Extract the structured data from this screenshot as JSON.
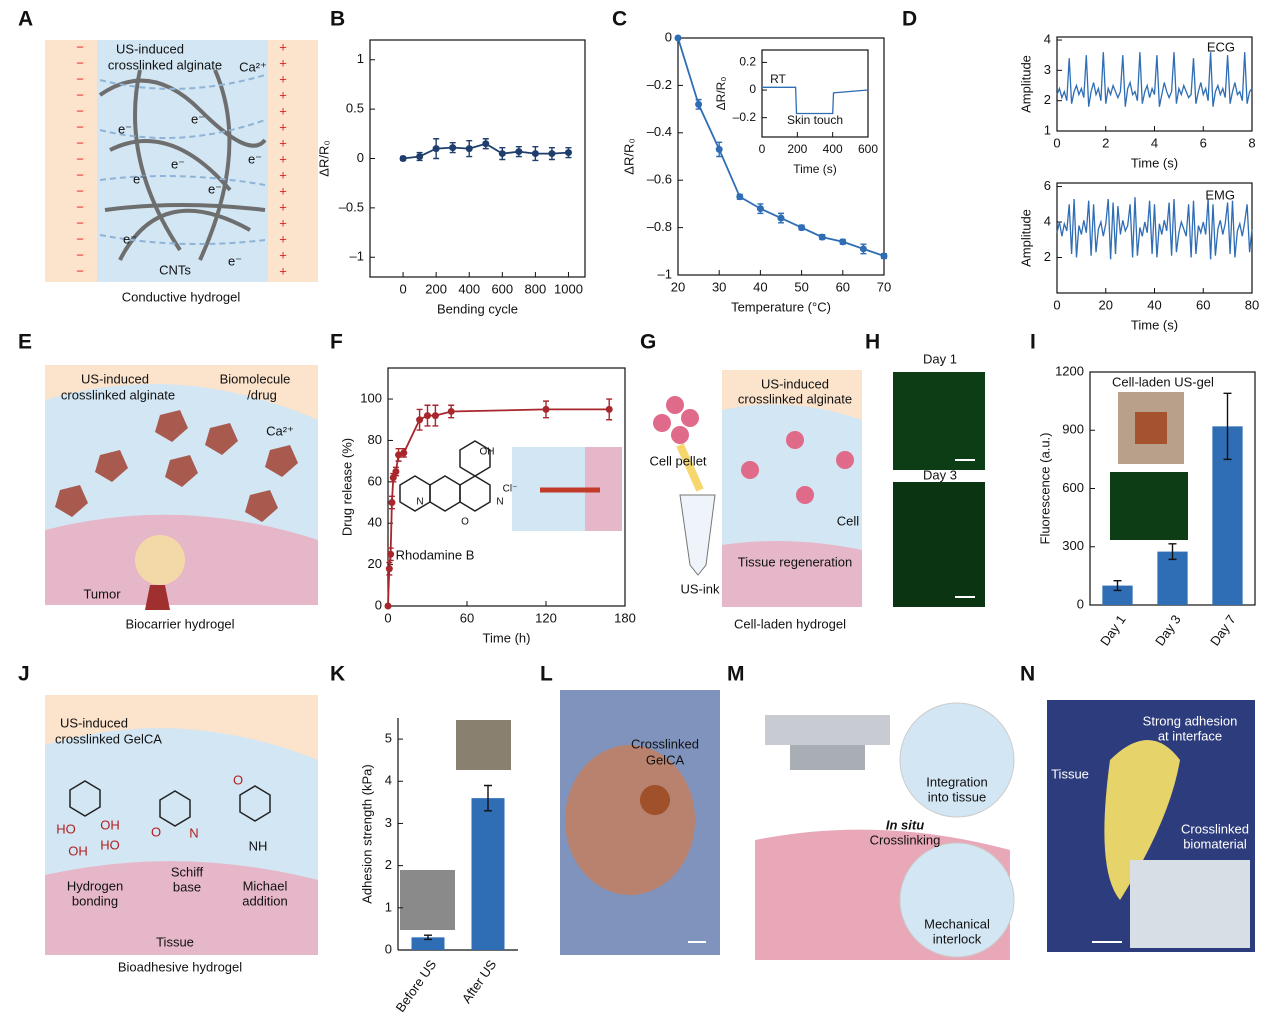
{
  "panel_letters": [
    "A",
    "B",
    "C",
    "D",
    "E",
    "F",
    "G",
    "H",
    "I",
    "J",
    "K",
    "L",
    "M",
    "N"
  ],
  "diagrams": {
    "A": [
      "US-induced",
      "crosslinked alginate",
      "Ca²⁺",
      "CNTs",
      "Conductive hydrogel",
      "e⁻",
      "−",
      "+"
    ],
    "E": [
      "US-induced",
      "crosslinked alginate",
      "Biomolecule",
      "/drug",
      "Ca²⁺",
      "Tumor",
      "Biocarrier hydrogel"
    ],
    "G": [
      "Cell pellet",
      "US-induced",
      "crosslinked alginate",
      "Cell",
      "Tissue regeneration",
      "US-ink",
      "Cell-laden hydrogel"
    ],
    "H": [
      "Day 1",
      "Day 3"
    ],
    "J": [
      "US-induced",
      "crosslinked GelCA",
      "HO",
      "OH",
      "OH",
      "HO",
      "O",
      "N",
      "O",
      "NH",
      "Hydrogen",
      "bonding",
      "Schiff",
      "base",
      "Michael",
      "addition",
      "Tissue",
      "Bioadhesive hydrogel"
    ],
    "L": [
      "Crosslinked",
      "GelCA"
    ],
    "M": [
      "Integration",
      "into tissue",
      "In situ",
      "Crosslinking",
      "Mechanical",
      "interlock"
    ],
    "N": [
      "Strong adhesion",
      "at interface",
      "Tissue",
      "Crosslinked",
      "biomaterial"
    ]
  },
  "chart_data": [
    {
      "type": "line",
      "markers": true,
      "frame": true,
      "color": "#1f3e6e",
      "x": [
        0,
        100,
        200,
        300,
        400,
        500,
        600,
        700,
        800,
        900,
        1000
      ],
      "values": [
        0,
        0.02,
        0.1,
        0.11,
        0.1,
        0.15,
        0.05,
        0.07,
        0.05,
        0.05,
        0.06
      ],
      "errors": [
        0.02,
        0.04,
        0.1,
        0.05,
        0.08,
        0.05,
        0.06,
        0.05,
        0.07,
        0.06,
        0.05
      ],
      "xlim": [
        -200,
        1100
      ],
      "xticks": [
        0,
        200,
        400,
        600,
        800,
        1000
      ],
      "ylim": [
        -1.2,
        1.2
      ],
      "yticks": [
        {
          "value": -1,
          "label": "–1"
        },
        {
          "value": -0.5,
          "label": "–0.5"
        },
        0,
        0.5,
        1
      ],
      "xlabel": "Bending cycle",
      "ylabel": "ΔR/R₀"
    },
    {
      "type": "line",
      "markers": true,
      "frame": true,
      "color": "#2f6db5",
      "x": [
        20,
        25,
        30,
        35,
        40,
        45,
        50,
        55,
        60,
        65,
        70
      ],
      "values": [
        0,
        -0.28,
        -0.47,
        -0.67,
        -0.72,
        -0.76,
        -0.8,
        -0.84,
        -0.86,
        -0.89,
        -0.92
      ],
      "errors": [
        0,
        0.02,
        0.03,
        0.01,
        0.02,
        0.02,
        0.01,
        0.01,
        0.01,
        0.02,
        0.01
      ],
      "xlim": [
        20,
        70
      ],
      "xticks": [
        20,
        30,
        40,
        50,
        60,
        70
      ],
      "ylim": [
        -1,
        0
      ],
      "yticks": [
        {
          "value": -1,
          "label": "–1"
        },
        {
          "value": -0.8,
          "label": "–0.8"
        },
        {
          "value": -0.6,
          "label": "–0.6"
        },
        {
          "value": -0.4,
          "label": "–0.4"
        },
        {
          "value": -0.2,
          "label": "–0.2"
        },
        0
      ],
      "xlabel": "Temperature (°C)",
      "ylabel": "ΔR/R₀"
    },
    {
      "type": "line",
      "markers": false,
      "frame": true,
      "color": "#2f6db5",
      "x": [
        0,
        190,
        195,
        400,
        405,
        600
      ],
      "values": [
        0.02,
        0.02,
        -0.17,
        -0.17,
        -0.02,
        0
      ],
      "xlim": [
        0,
        600
      ],
      "xticks": [
        0,
        200,
        400,
        600
      ],
      "ylim": [
        -0.34,
        0.29
      ],
      "yticks": [
        {
          "value": -0.2,
          "label": "–0.2"
        },
        0,
        0.2
      ],
      "xlabel": "Time (s)",
      "ylabel": "ΔR/R₀",
      "annotations": [
        "RT",
        "Skin touch"
      ]
    },
    {
      "type": "line",
      "markers": false,
      "frame": true,
      "color": "#2f6db5",
      "x": [
        0,
        0.1,
        0.2,
        0.3,
        0.4,
        0.5,
        0.6,
        0.7,
        0.8,
        0.9,
        1,
        1.1,
        1.2,
        1.3,
        1.4,
        1.5,
        1.6,
        1.7,
        1.8,
        1.9,
        2,
        2.1,
        2.2,
        2.3,
        2.4,
        2.5,
        2.6,
        2.7,
        2.8,
        2.9,
        3,
        3.1,
        3.2,
        3.3,
        3.4,
        3.5,
        3.6,
        3.7,
        3.8,
        3.9,
        4,
        4.1,
        4.2,
        4.3,
        4.4,
        4.5,
        4.6,
        4.7,
        4.8,
        4.9,
        5,
        5.1,
        5.2,
        5.3,
        5.4,
        5.5,
        5.6,
        5.7,
        5.8,
        5.9,
        6,
        6.1,
        6.2,
        6.3,
        6.4,
        6.5,
        6.6,
        6.7,
        6.8,
        6.9,
        7,
        7.1,
        7.2,
        7.3,
        7.4,
        7.5,
        7.6,
        7.7,
        7.8,
        7.9,
        8
      ],
      "values": [
        2.2,
        2.4,
        2.1,
        2.3,
        2.0,
        3.4,
        1.9,
        2.3,
        2.5,
        2.2,
        2.4,
        2.1,
        3.5,
        1.8,
        2.3,
        2.6,
        2.2,
        2.4,
        2.0,
        3.6,
        1.9,
        2.4,
        2.2,
        2.5,
        2.3,
        2.1,
        2.3,
        3.5,
        1.8,
        2.4,
        2.6,
        2.2,
        2.3,
        2.0,
        3.6,
        1.9,
        2.3,
        2.5,
        2.1,
        2.4,
        2.2,
        3.5,
        1.8,
        2.2,
        2.6,
        2.3,
        2.1,
        2.3,
        3.6,
        1.9,
        2.4,
        2.2,
        2.5,
        2.3,
        2.1,
        2.2,
        3.4,
        1.9,
        2.3,
        2.6,
        2.2,
        2.4,
        2.0,
        3.6,
        1.8,
        2.3,
        2.5,
        2.2,
        2.4,
        2.1,
        3.5,
        1.9,
        2.3,
        2.6,
        2.2,
        2.3,
        2.0,
        3.6,
        1.9,
        2.3,
        2.4
      ],
      "xlim": [
        0,
        8
      ],
      "xticks": [
        0,
        2,
        4,
        6,
        8
      ],
      "ylim": [
        1,
        4.1
      ],
      "yticks": [
        1,
        2,
        3,
        4
      ],
      "xlabel": "Time (s)",
      "ylabel": "Amplitude",
      "annotations": [
        "ECG"
      ]
    },
    {
      "type": "line",
      "markers": false,
      "frame": true,
      "color": "#2f6db5",
      "x": [
        0,
        1,
        2,
        3,
        4,
        5,
        6,
        7,
        8,
        9,
        10,
        11,
        12,
        13,
        14,
        15,
        16,
        17,
        18,
        19,
        20,
        21,
        22,
        23,
        24,
        25,
        26,
        27,
        28,
        29,
        30,
        31,
        32,
        33,
        34,
        35,
        36,
        37,
        38,
        39,
        40,
        41,
        42,
        43,
        44,
        45,
        46,
        47,
        48,
        49,
        50,
        51,
        52,
        53,
        54,
        55,
        56,
        57,
        58,
        59,
        60,
        61,
        62,
        63,
        64,
        65,
        66,
        67,
        68,
        69,
        70,
        71,
        72,
        73,
        74,
        75,
        76,
        77,
        78,
        79,
        80
      ],
      "values": [
        3.4,
        4.0,
        3.2,
        3.9,
        3.5,
        5.0,
        2.2,
        5.3,
        2.0,
        3.8,
        3.3,
        4.1,
        3.4,
        5.2,
        2.1,
        5.0,
        2.3,
        3.6,
        4.0,
        3.2,
        3.9,
        5.3,
        1.9,
        5.1,
        2.2,
        4.9,
        3.3,
        4.1,
        3.5,
        3.8,
        5.0,
        2.0,
        5.4,
        2.1,
        3.7,
        3.2,
        4.0,
        3.4,
        5.2,
        2.2,
        5.0,
        2.0,
        3.9,
        3.3,
        4.1,
        3.5,
        5.1,
        2.1,
        5.3,
        2.3,
        3.4,
        4.0,
        3.6,
        3.2,
        5.0,
        2.0,
        5.2,
        2.2,
        3.8,
        3.4,
        4.0,
        3.3,
        5.3,
        1.9,
        5.0,
        2.1,
        3.6,
        4.1,
        3.3,
        3.9,
        5.1,
        2.2,
        5.2,
        2.0,
        3.5,
        3.9,
        3.2,
        4.0,
        5.0,
        2.3,
        3.6
      ],
      "xlim": [
        0,
        80
      ],
      "xticks": [
        0,
        20,
        40,
        60,
        80
      ],
      "ylim": [
        0,
        6.2
      ],
      "yticks": [
        2,
        4,
        6
      ],
      "xlabel": "Time (s)",
      "ylabel": "Amplitude",
      "annotations": [
        "EMG"
      ]
    },
    {
      "type": "line",
      "markers": true,
      "frame": true,
      "color": "#a8272d",
      "x": [
        0,
        1,
        2,
        3,
        4,
        6,
        8,
        12,
        24,
        30,
        36,
        48,
        120,
        168
      ],
      "values": [
        0,
        18,
        25,
        50,
        62,
        65,
        73,
        74,
        90,
        92,
        92,
        94,
        95,
        95
      ],
      "errors": [
        0,
        3,
        3,
        3,
        2,
        2,
        3,
        2,
        5,
        5,
        5,
        3,
        4,
        5
      ],
      "xlim": [
        0,
        180
      ],
      "xticks": [
        0,
        60,
        120,
        180
      ],
      "ylim": [
        0,
        115
      ],
      "yticks": [
        0,
        20,
        40,
        60,
        80,
        100
      ],
      "xlabel": "Time (h)",
      "ylabel": "Drug release (%)",
      "annotations": [
        "Rhodamine B",
        "OH",
        "N",
        "N",
        "Cl⁻",
        "O"
      ]
    },
    {
      "type": "bar",
      "frame": true,
      "color": "#2f6db5",
      "categories": [
        "Day 1",
        "Day 3",
        "Day 7"
      ],
      "values": [
        100,
        275,
        920
      ],
      "errors": [
        25,
        40,
        170
      ],
      "ylim": [
        0,
        1200
      ],
      "yticks": [
        0,
        300,
        600,
        900,
        1200
      ],
      "ylabel": "Fluorescence (a.u.)",
      "annotations": [
        "Cell-laden US-gel"
      ]
    },
    {
      "type": "bar",
      "frame": false,
      "color": "#2f6db5",
      "categories": [
        "Before US",
        "After US"
      ],
      "values": [
        0.3,
        3.6
      ],
      "errors": [
        0.05,
        0.3
      ],
      "ylim": [
        0,
        5.5
      ],
      "yticks": [
        0,
        1,
        2,
        3,
        4,
        5
      ],
      "ylabel": "Adhesion strength (kPa)"
    }
  ]
}
